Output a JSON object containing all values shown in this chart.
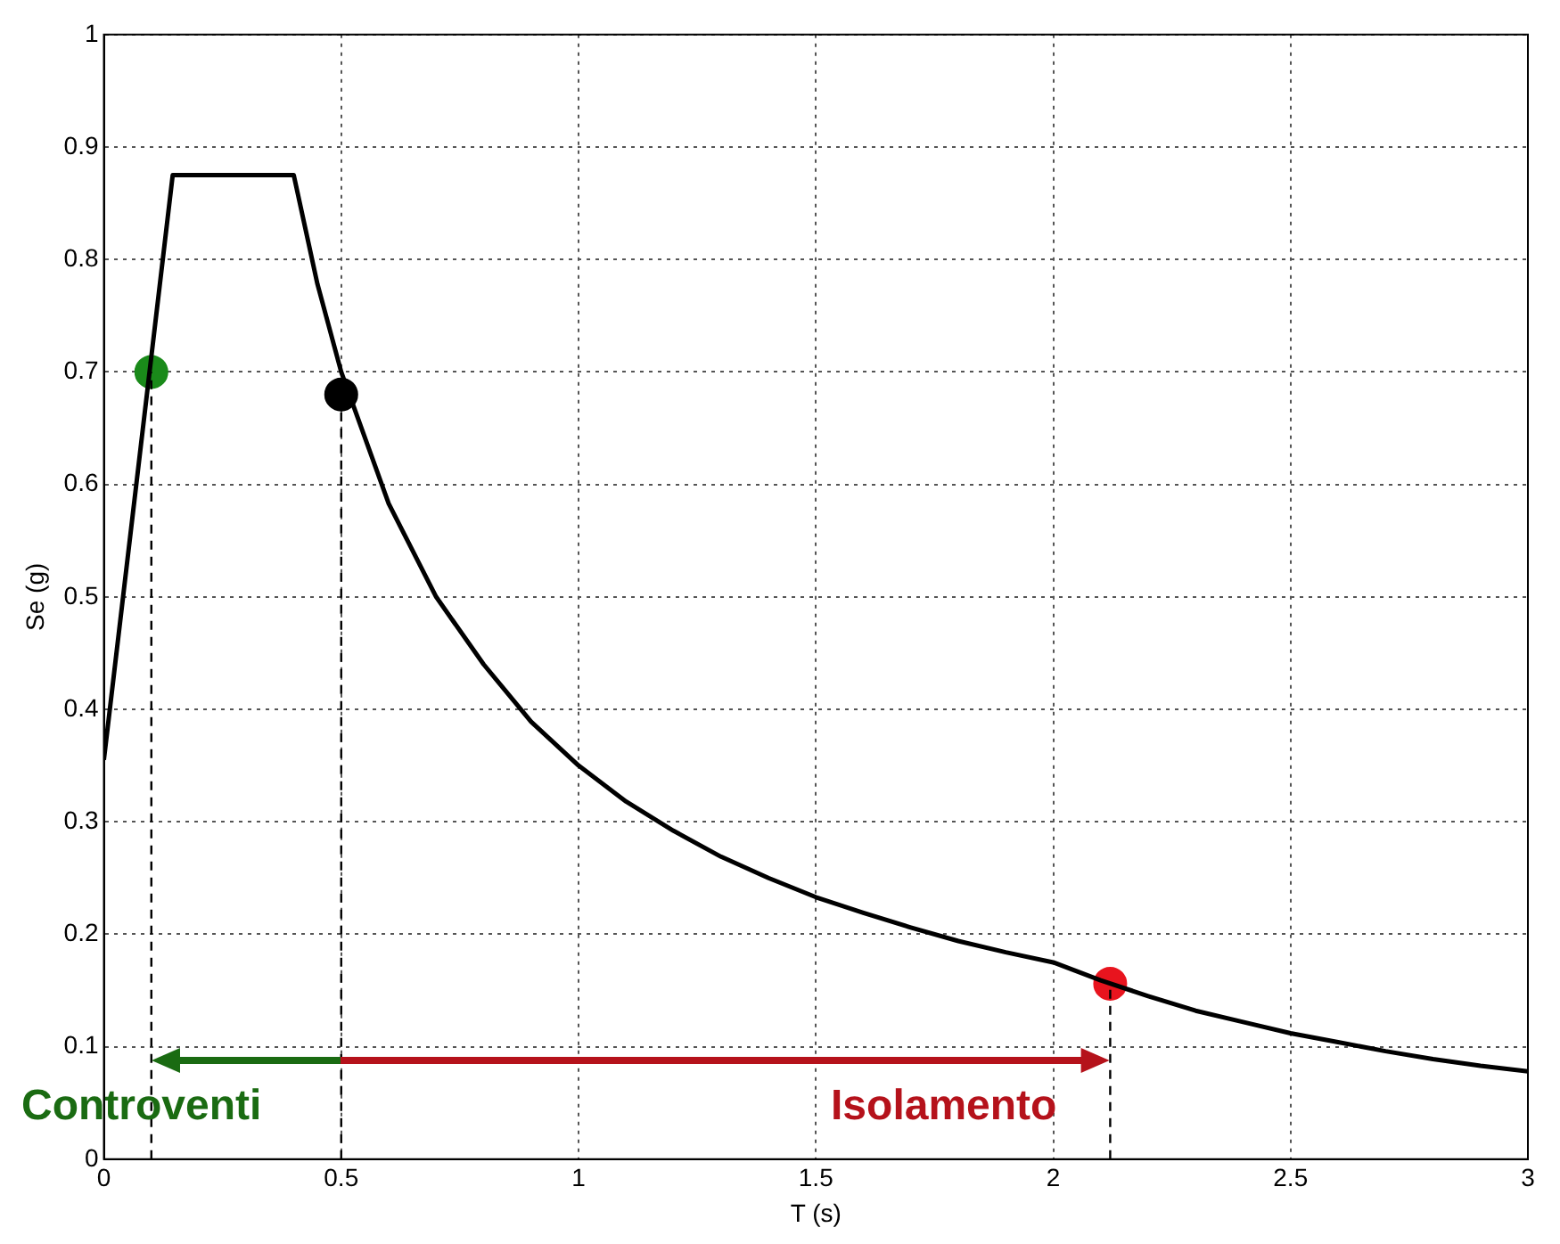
{
  "chart_data": {
    "type": "line",
    "xlabel": "T (s)",
    "ylabel": "Se (g)",
    "xlim": [
      0,
      3
    ],
    "ylim": [
      0,
      1
    ],
    "xticks": [
      0,
      0.5,
      1,
      1.5,
      2,
      2.5,
      3
    ],
    "yticks": [
      0,
      0.1,
      0.2,
      0.3,
      0.4,
      0.5,
      0.6,
      0.7,
      0.8,
      0.9,
      1
    ],
    "grid": true,
    "legend": false,
    "series": [
      {
        "color": "#000000",
        "line_style": "solid",
        "x": [
          0,
          0.145,
          0.4,
          0.45,
          0.5,
          0.6,
          0.7,
          0.8,
          0.9,
          1.0,
          1.1,
          1.2,
          1.3,
          1.4,
          1.5,
          1.6,
          1.7,
          1.8,
          1.9,
          2.0,
          2.1,
          2.2,
          2.3,
          2.4,
          2.5,
          2.6,
          2.7,
          2.8,
          2.9,
          3.0
        ],
        "values": [
          0.355,
          0.875,
          0.875,
          0.778,
          0.7,
          0.583,
          0.5,
          0.44,
          0.389,
          0.35,
          0.318,
          0.292,
          0.269,
          0.25,
          0.233,
          0.219,
          0.206,
          0.194,
          0.184,
          0.175,
          0.159,
          0.145,
          0.132,
          0.122,
          0.112,
          0.104,
          0.096,
          0.089,
          0.083,
          0.078
        ]
      },
      {
        "type": "line",
        "color": "#000000",
        "line_style": "dashed",
        "x": [
          0.1,
          0.1
        ],
        "values": [
          0,
          0.7
        ]
      },
      {
        "type": "line",
        "color": "#000000",
        "line_style": "dashed",
        "x": [
          0.5,
          0.5
        ],
        "values": [
          0,
          0.68
        ]
      },
      {
        "type": "line",
        "color": "#000000",
        "line_style": "dashed",
        "x": [
          2.12,
          2.12
        ],
        "values": [
          0,
          0.156
        ]
      },
      {
        "type": "scatter",
        "color": "#1a8a1a",
        "marker": "circle",
        "x": [
          0.1
        ],
        "values": [
          0.7
        ]
      },
      {
        "type": "scatter",
        "color": "#000000",
        "marker": "circle",
        "x": [
          0.5
        ],
        "values": [
          0.68
        ]
      },
      {
        "type": "scatter",
        "color": "#e8141e",
        "marker": "circle",
        "x": [
          2.12
        ],
        "values": [
          0.156
        ]
      }
    ],
    "annotations": [
      {
        "text": "Controventi",
        "x": 0.1,
        "y": 0.088
      },
      {
        "text": "Isolamento",
        "x": 2.12,
        "y": 0.088
      }
    ]
  }
}
